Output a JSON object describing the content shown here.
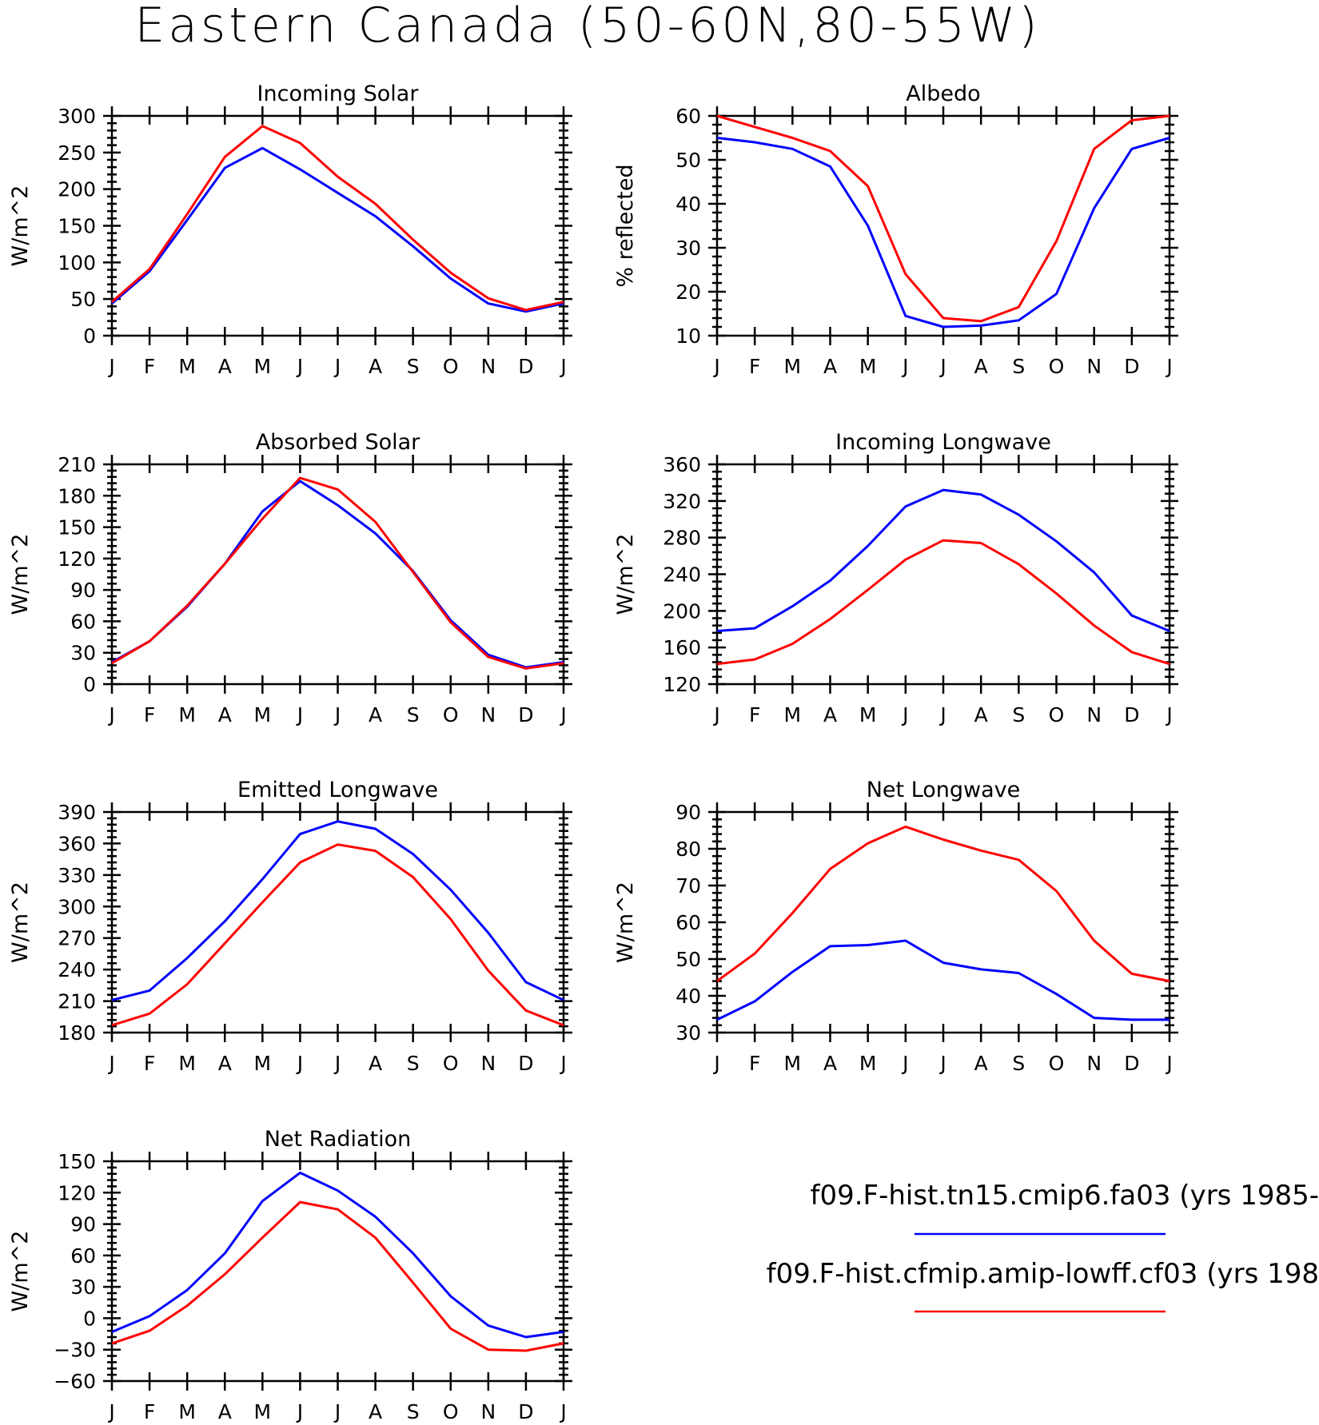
{
  "page_title": "Eastern Canada (50-60N,80-55W)",
  "colors": {
    "model_a": "#0000ff",
    "model_b": "#ff0000"
  },
  "legend": [
    {
      "label": "f09.F-hist.tn15.cmip6.fa03 (yrs 1985-",
      "color": "#0000ff"
    },
    {
      "label": "f09.F-hist.cfmip.amip-lowff.cf03 (yrs 198",
      "color": "#ff0000"
    }
  ],
  "chart_data": [
    {
      "type": "line",
      "title": "Incoming Solar",
      "ylabel": "W/m^2",
      "categories": [
        "J",
        "F",
        "M",
        "A",
        "M",
        "J",
        "J",
        "A",
        "S",
        "O",
        "N",
        "D",
        "J"
      ],
      "ylim": [
        0,
        300
      ],
      "yticks": [
        0,
        50,
        100,
        150,
        200,
        250,
        300
      ],
      "series": [
        {
          "color": "#0000ff",
          "values": [
            44,
            88,
            158,
            229,
            256,
            227,
            195,
            163,
            122,
            78,
            44,
            33,
            44
          ]
        },
        {
          "color": "#ff0000",
          "values": [
            46,
            91,
            166,
            244,
            286,
            263,
            217,
            180,
            131,
            86,
            51,
            35,
            46
          ]
        }
      ]
    },
    {
      "type": "line",
      "title": "Albedo",
      "ylabel": "% reflected",
      "categories": [
        "J",
        "F",
        "M",
        "A",
        "M",
        "J",
        "J",
        "A",
        "S",
        "O",
        "N",
        "D",
        "J"
      ],
      "ylim": [
        10,
        60
      ],
      "yticks": [
        10,
        20,
        30,
        40,
        50,
        60
      ],
      "series": [
        {
          "color": "#0000ff",
          "values": [
            55,
            54,
            52.5,
            48.5,
            35,
            14.5,
            12,
            12.3,
            13.5,
            19.5,
            39,
            52.5,
            55
          ]
        },
        {
          "color": "#ff0000",
          "values": [
            60,
            57.5,
            55,
            52,
            44,
            24,
            14,
            13.3,
            16.5,
            31.5,
            52.5,
            59,
            60
          ]
        }
      ]
    },
    {
      "type": "line",
      "title": "Absorbed Solar",
      "ylabel": "W/m^2",
      "categories": [
        "J",
        "F",
        "M",
        "A",
        "M",
        "J",
        "J",
        "A",
        "S",
        "O",
        "N",
        "D",
        "J"
      ],
      "ylim": [
        0,
        210
      ],
      "yticks": [
        0,
        30,
        60,
        90,
        120,
        150,
        180,
        210
      ],
      "series": [
        {
          "color": "#0000ff",
          "values": [
            21,
            41,
            74,
            115,
            165,
            194,
            171,
            144,
            108,
            61,
            28,
            16,
            21
          ]
        },
        {
          "color": "#ff0000",
          "values": [
            20,
            41,
            75,
            115,
            158,
            197,
            186,
            155,
            107,
            59,
            26,
            15,
            20
          ]
        }
      ]
    },
    {
      "type": "line",
      "title": "Incoming Longwave",
      "ylabel": "W/m^2",
      "categories": [
        "J",
        "F",
        "M",
        "A",
        "M",
        "J",
        "J",
        "A",
        "S",
        "O",
        "N",
        "D",
        "J"
      ],
      "ylim": [
        120,
        360
      ],
      "yticks": [
        120,
        160,
        200,
        240,
        280,
        320,
        360
      ],
      "series": [
        {
          "color": "#0000ff",
          "values": [
            178,
            181,
            205,
            233,
            271,
            314,
            332,
            327,
            305,
            276,
            242,
            195,
            178
          ]
        },
        {
          "color": "#ff0000",
          "values": [
            142,
            147,
            164,
            191,
            223,
            256,
            277,
            274,
            251,
            219,
            184,
            155,
            142
          ]
        }
      ]
    },
    {
      "type": "line",
      "title": "Emitted Longwave",
      "ylabel": "W/m^2",
      "categories": [
        "J",
        "F",
        "M",
        "A",
        "M",
        "J",
        "J",
        "A",
        "S",
        "O",
        "N",
        "D",
        "J"
      ],
      "ylim": [
        180,
        390
      ],
      "yticks": [
        180,
        210,
        240,
        270,
        300,
        330,
        360,
        390
      ],
      "series": [
        {
          "color": "#0000ff",
          "values": [
            211,
            220,
            251,
            286,
            326,
            369,
            381,
            374,
            350,
            316,
            275,
            228,
            211
          ]
        },
        {
          "color": "#ff0000",
          "values": [
            187,
            198,
            226,
            265,
            304,
            342,
            359,
            353,
            328,
            288,
            239,
            201,
            187
          ]
        }
      ]
    },
    {
      "type": "line",
      "title": "Net Longwave",
      "ylabel": "W/m^2",
      "categories": [
        "J",
        "F",
        "M",
        "A",
        "M",
        "J",
        "J",
        "A",
        "S",
        "O",
        "N",
        "D",
        "J"
      ],
      "ylim": [
        30,
        90
      ],
      "yticks": [
        30,
        40,
        50,
        60,
        70,
        80,
        90
      ],
      "series": [
        {
          "color": "#0000ff",
          "values": [
            33.5,
            38.5,
            46.5,
            53.5,
            53.8,
            55,
            49,
            47.2,
            46.2,
            40.5,
            34,
            33.5,
            33.5
          ]
        },
        {
          "color": "#ff0000",
          "values": [
            44,
            51.5,
            62.5,
            74.5,
            81.5,
            86,
            82.5,
            79.5,
            77,
            68.5,
            55,
            46,
            44
          ]
        }
      ]
    },
    {
      "type": "line",
      "title": "Net Radiation",
      "ylabel": "W/m^2",
      "categories": [
        "J",
        "F",
        "M",
        "A",
        "M",
        "J",
        "J",
        "A",
        "S",
        "O",
        "N",
        "D",
        "J"
      ],
      "ylim": [
        -60,
        150
      ],
      "yticks": [
        -60,
        -30,
        0,
        30,
        60,
        90,
        120,
        150
      ],
      "series": [
        {
          "color": "#0000ff",
          "values": [
            -13,
            2,
            27,
            62,
            112,
            139,
            122,
            97,
            62,
            21,
            -7,
            -18,
            -13
          ]
        },
        {
          "color": "#ff0000",
          "values": [
            -24,
            -12,
            12,
            42,
            77,
            111,
            104,
            77,
            34,
            -10,
            -30,
            -31,
            -24
          ]
        }
      ]
    }
  ]
}
